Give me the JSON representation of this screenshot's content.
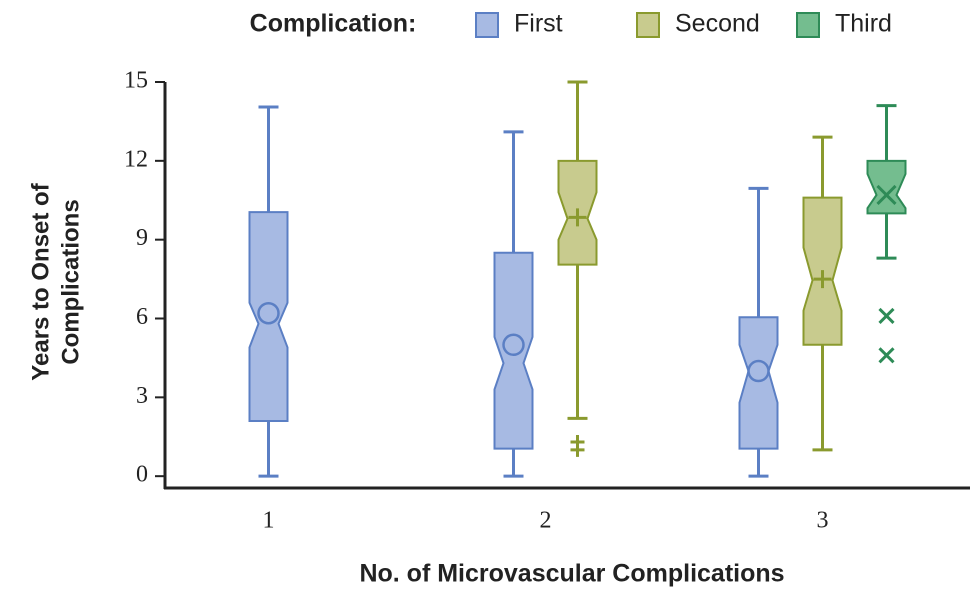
{
  "chart_data": {
    "type": "box",
    "legend_title": "Complication:",
    "xlabel": "No. of Microvascular Complications",
    "ylabel": [
      "Years to Onset of",
      "Complications"
    ],
    "categories": [
      "1",
      "2",
      "3"
    ],
    "ylim": [
      -0.45,
      15
    ],
    "yticks": [
      0,
      3,
      6,
      9,
      12,
      15
    ],
    "series": [
      {
        "name": "First",
        "color": "#5b7fc4",
        "fill": "#a7bae3",
        "marker": "circle",
        "boxes": [
          {
            "min": 0,
            "q1": 2.1,
            "notch_low": 4.9,
            "median": 5.8,
            "notch_high": 6.6,
            "q3": 10.05,
            "max": 14.05,
            "mean": 6.2,
            "outliers": []
          },
          {
            "min": 0,
            "q1": 1.05,
            "notch_low": 3.3,
            "median": 4.3,
            "notch_high": 5.3,
            "q3": 8.5,
            "max": 13.1,
            "mean": 5.0,
            "outliers": []
          },
          {
            "min": 0,
            "q1": 1.05,
            "notch_low": 2.8,
            "median": 4.0,
            "notch_high": 5.0,
            "q3": 6.05,
            "max": 10.95,
            "mean": 4.0,
            "outliers": []
          }
        ]
      },
      {
        "name": "Second",
        "color": "#8a9a2e",
        "fill": "#c8cb8e",
        "marker": "plus",
        "boxes": [
          null,
          {
            "min": 2.2,
            "q1": 8.05,
            "notch_low": 9.0,
            "median": 9.8,
            "notch_high": 10.8,
            "q3": 12.0,
            "max": 15,
            "mean": 9.85,
            "outliers": [
              1.3,
              1.0
            ]
          },
          {
            "min": 1.0,
            "q1": 5.0,
            "notch_low": 6.3,
            "median": 7.45,
            "notch_high": 8.7,
            "q3": 10.6,
            "max": 12.9,
            "mean": 7.5,
            "outliers": []
          }
        ]
      },
      {
        "name": "Third",
        "color": "#2e8b57",
        "fill": "#74bd8f",
        "marker": "cross",
        "boxes": [
          null,
          null,
          {
            "min": 8.3,
            "q1": 10.0,
            "notch_low": 10.2,
            "median": 10.7,
            "notch_high": 11.5,
            "q3": 12.0,
            "max": 14.1,
            "mean": 10.7,
            "outliers": [
              6.1,
              4.6
            ]
          }
        ]
      }
    ]
  }
}
